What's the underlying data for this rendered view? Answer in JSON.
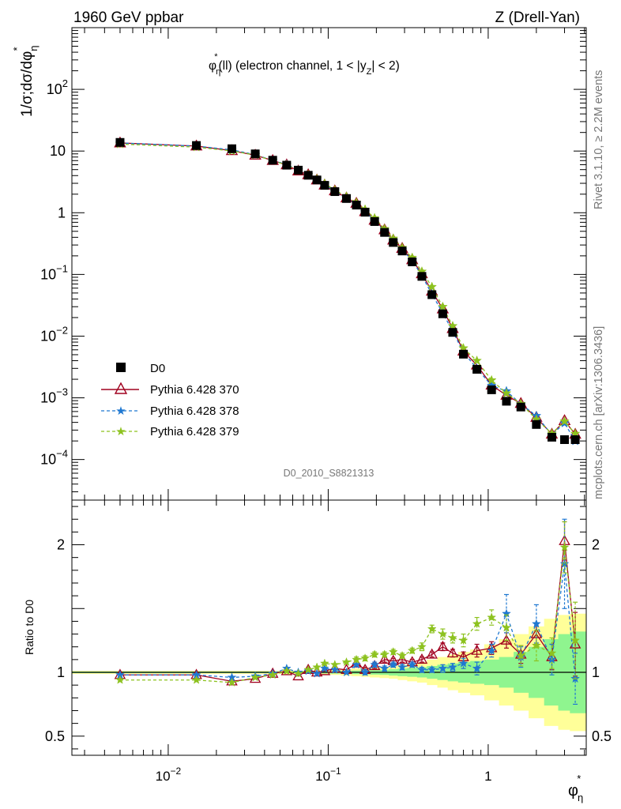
{
  "header": {
    "left": "1960 GeV ppbar",
    "right": "Z (Drell-Yan)"
  },
  "side_labels": {
    "rivet": "Rivet 3.1.10, ≥ 2.2M events",
    "mcplots": "mcplots.cern.ch [arXiv:1306.3436]"
  },
  "watermark": "D0_2010_S8821313",
  "chart_data": {
    "type": "scatter",
    "title": {
      "base": "φ",
      "sup": "*",
      "sub": "η",
      "rest1": "(ll) (electron channel, 1 < |y",
      "rest_sub": "Z",
      "rest2": "| < 2)"
    },
    "ylabel": {
      "prefix": "1/σ;dσ/dφ",
      "sup": "*",
      "sub": "η"
    },
    "xlabel": {
      "base": "φ",
      "sup": "*",
      "sub": "η"
    },
    "ratio_ylabel": "Ratio to D0",
    "x_scale": "log",
    "x_range": [
      0.0025,
      4.1
    ],
    "y_scale": "log",
    "y_range": [
      2.2e-05,
      1000
    ],
    "ratio_range": [
      0.35,
      2.35
    ],
    "x_tick_labels": [
      {
        "value": 0.01,
        "base": "10",
        "exp": "−2"
      },
      {
        "value": 0.1,
        "base": "10",
        "exp": "−1"
      },
      {
        "value": 1,
        "base": "1",
        "exp": ""
      }
    ],
    "y_tick_labels": [
      {
        "value": 0.0001,
        "base": "10",
        "exp": "−4"
      },
      {
        "value": 0.001,
        "base": "10",
        "exp": "−3"
      },
      {
        "value": 0.01,
        "base": "10",
        "exp": "−2"
      },
      {
        "value": 0.1,
        "base": "10",
        "exp": "−1"
      },
      {
        "value": 1,
        "base": "1",
        "exp": ""
      },
      {
        "value": 10,
        "base": "10",
        "exp": ""
      },
      {
        "value": 100,
        "base": "10",
        "exp": "2"
      }
    ],
    "ratio_tick_labels": [
      {
        "value": 0.5,
        "label": "0.5"
      },
      {
        "value": 1,
        "label": "1"
      },
      {
        "value": 2,
        "label": "2"
      }
    ],
    "legend_position": "lower-left",
    "x": [
      0.005,
      0.015,
      0.025,
      0.035,
      0.045,
      0.055,
      0.065,
      0.075,
      0.085,
      0.095,
      0.11,
      0.13,
      0.15,
      0.17,
      0.195,
      0.225,
      0.255,
      0.29,
      0.335,
      0.385,
      0.445,
      0.52,
      0.6,
      0.7,
      0.85,
      1.05,
      1.3,
      1.6,
      2.0,
      2.5,
      3.0,
      3.5
    ],
    "data": {
      "name": "D0",
      "y": [
        13.8,
        12.3,
        10.9,
        9.0,
        7.1,
        5.9,
        4.9,
        4.05,
        3.4,
        2.78,
        2.2,
        1.7,
        1.33,
        1.02,
        0.72,
        0.48,
        0.33,
        0.24,
        0.16,
        0.093,
        0.047,
        0.023,
        0.0115,
        0.0051,
        0.0029,
        0.00135,
        0.00088,
        0.00071,
        0.00037,
        0.00023,
        0.00021,
        0.00021
      ],
      "band1": [
        0.006,
        0.006,
        0.006,
        0.006,
        0.006,
        0.006,
        0.006,
        0.006,
        0.006,
        0.008,
        0.01,
        0.012,
        0.014,
        0.016,
        0.018,
        0.02,
        0.025,
        0.03,
        0.035,
        0.04,
        0.05,
        0.06,
        0.07,
        0.08,
        0.09,
        0.1,
        0.12,
        0.16,
        0.2,
        0.26,
        0.3,
        0.32
      ],
      "band2": [
        0.012,
        0.012,
        0.012,
        0.012,
        0.012,
        0.012,
        0.012,
        0.012,
        0.012,
        0.016,
        0.02,
        0.025,
        0.03,
        0.035,
        0.04,
        0.045,
        0.05,
        0.06,
        0.07,
        0.08,
        0.1,
        0.12,
        0.14,
        0.16,
        0.18,
        0.22,
        0.26,
        0.3,
        0.36,
        0.42,
        0.45,
        0.46
      ]
    },
    "series": [
      {
        "name": "Pythia 6.428 370",
        "color": "#a0001e",
        "marker": "triangle-open",
        "dash": "solid",
        "ratio": [
          0.98,
          0.98,
          0.93,
          0.95,
          0.99,
          1.01,
          0.97,
          1.02,
          1.0,
          1.01,
          1.03,
          1.02,
          1.07,
          1.02,
          1.05,
          1.1,
          1.09,
          1.1,
          1.08,
          1.1,
          1.14,
          1.2,
          1.15,
          1.12,
          1.17,
          1.19,
          1.25,
          1.14,
          1.3,
          1.12,
          2.03,
          1.22
        ],
        "err": [
          0.01,
          0.01,
          0.01,
          0.01,
          0.01,
          0.01,
          0.01,
          0.01,
          0.01,
          0.01,
          0.01,
          0.01,
          0.01,
          0.02,
          0.02,
          0.02,
          0.02,
          0.02,
          0.02,
          0.02,
          0.02,
          0.03,
          0.03,
          0.04,
          0.05,
          0.05,
          0.06,
          0.07,
          0.08,
          0.1,
          0.15,
          0.25
        ]
      },
      {
        "name": "Pythia 6.428 378",
        "color": "#1f78d1",
        "marker": "star",
        "dash": "dashed",
        "ratio": [
          0.98,
          0.98,
          0.96,
          0.97,
          0.99,
          1.03,
          1.0,
          1.01,
          0.99,
          1.03,
          1.02,
          1.0,
          1.06,
          1.0,
          1.06,
          1.03,
          1.06,
          1.04,
          1.06,
          1.02,
          1.02,
          1.03,
          1.04,
          1.07,
          1.03,
          1.17,
          1.46,
          1.12,
          1.38,
          1.1,
          1.85,
          0.95
        ],
        "err": [
          0.01,
          0.01,
          0.01,
          0.01,
          0.01,
          0.01,
          0.01,
          0.01,
          0.01,
          0.01,
          0.01,
          0.01,
          0.01,
          0.02,
          0.02,
          0.02,
          0.02,
          0.02,
          0.02,
          0.02,
          0.02,
          0.03,
          0.03,
          0.04,
          0.05,
          0.05,
          0.15,
          0.08,
          0.15,
          0.12,
          0.35,
          0.2
        ]
      },
      {
        "name": "Pythia 6.428 379",
        "color": "#8dc21f",
        "marker": "star",
        "dash": "dashed",
        "ratio": [
          0.94,
          0.94,
          0.92,
          0.96,
          0.98,
          1.01,
          0.99,
          1.02,
          1.04,
          1.07,
          1.06,
          1.08,
          1.1,
          1.11,
          1.14,
          1.14,
          1.16,
          1.13,
          1.17,
          1.2,
          1.34,
          1.3,
          1.27,
          1.25,
          1.38,
          1.43,
          1.35,
          1.13,
          1.21,
          1.15,
          1.98,
          1.25
        ],
        "err": [
          0.01,
          0.01,
          0.01,
          0.01,
          0.01,
          0.01,
          0.01,
          0.01,
          0.01,
          0.01,
          0.01,
          0.01,
          0.02,
          0.02,
          0.02,
          0.02,
          0.02,
          0.02,
          0.02,
          0.03,
          0.03,
          0.04,
          0.04,
          0.05,
          0.05,
          0.06,
          0.1,
          0.08,
          0.12,
          0.12,
          0.2,
          0.3
        ]
      }
    ]
  }
}
